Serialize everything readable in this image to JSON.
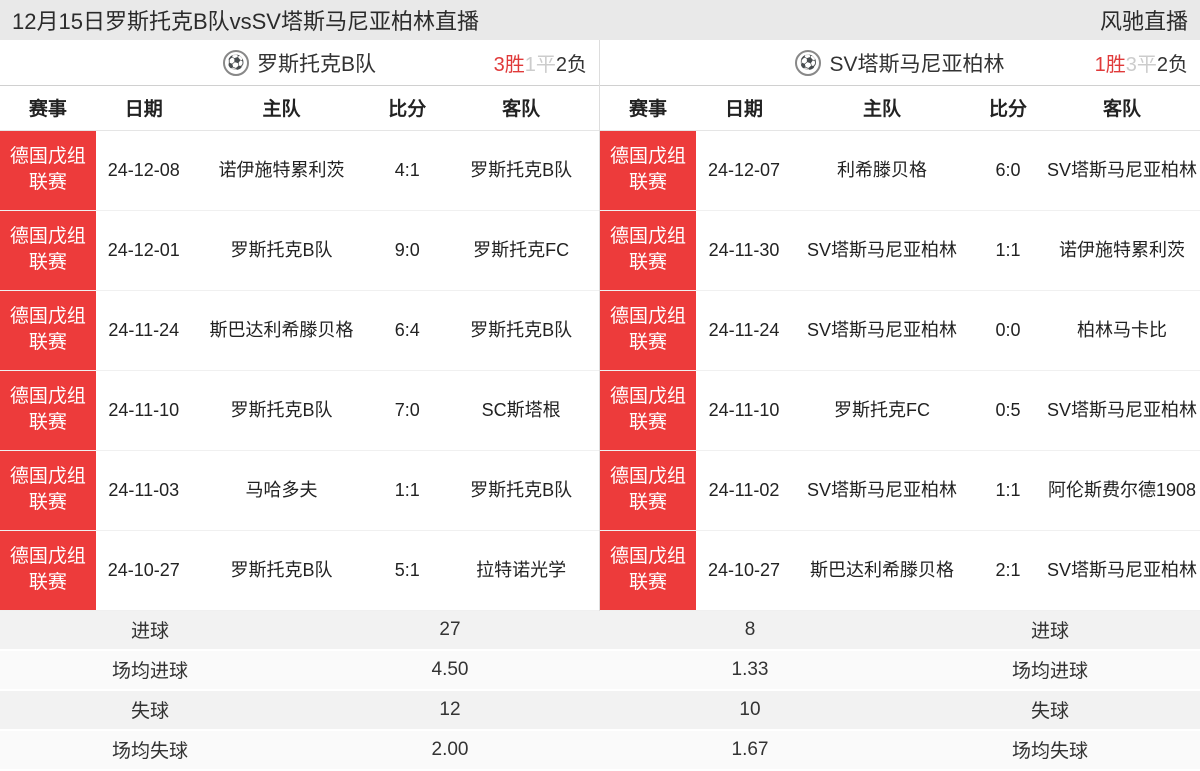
{
  "header": {
    "title": "12月15日罗斯托克B队vsSV塔斯马尼亚柏林直播",
    "site": "风驰直播"
  },
  "columns": {
    "league": "赛事",
    "date": "日期",
    "home": "主队",
    "score": "比分",
    "away": "客队"
  },
  "left": {
    "team_icon_bg": "#e8e8f5",
    "team_name": "罗斯托克B队",
    "summary": {
      "win_n": "3",
      "win_t": "胜",
      "draw_n": "1",
      "draw_t": "平",
      "loss_n": "2",
      "loss_t": "负"
    },
    "rows": [
      {
        "league": "德国戊组联赛",
        "date": "24-12-08",
        "home": "诺伊施特累利茨",
        "score": "4:1",
        "away": "罗斯托克B队"
      },
      {
        "league": "德国戊组联赛",
        "date": "24-12-01",
        "home": "罗斯托克B队",
        "score": "9:0",
        "away": "罗斯托克FC"
      },
      {
        "league": "德国戊组联赛",
        "date": "24-11-24",
        "home": "斯巴达利希滕贝格",
        "score": "6:4",
        "away": "罗斯托克B队"
      },
      {
        "league": "德国戊组联赛",
        "date": "24-11-10",
        "home": "罗斯托克B队",
        "score": "7:0",
        "away": "SC斯塔根"
      },
      {
        "league": "德国戊组联赛",
        "date": "24-11-03",
        "home": "马哈多夫",
        "score": "1:1",
        "away": "罗斯托克B队"
      },
      {
        "league": "德国戊组联赛",
        "date": "24-10-27",
        "home": "罗斯托克B队",
        "score": "5:1",
        "away": "拉特诺光学"
      }
    ],
    "stats": {
      "goals_label": "进球",
      "goals_value": "27",
      "avg_goals_label": "场均进球",
      "avg_goals_value": "4.50",
      "conceded_label": "失球",
      "conceded_value": "12",
      "avg_conceded_label": "场均失球",
      "avg_conceded_value": "2.00"
    }
  },
  "right": {
    "team_icon_bg": "#f0e8f5",
    "team_name": "SV塔斯马尼亚柏林",
    "summary": {
      "win_n": "1",
      "win_t": "胜",
      "draw_n": "3",
      "draw_t": "平",
      "loss_n": "2",
      "loss_t": "负"
    },
    "rows": [
      {
        "league": "德国戊组联赛",
        "date": "24-12-07",
        "home": "利希滕贝格",
        "score": "6:0",
        "away": "SV塔斯马尼亚柏林"
      },
      {
        "league": "德国戊组联赛",
        "date": "24-11-30",
        "home": "SV塔斯马尼亚柏林",
        "score": "1:1",
        "away": "诺伊施特累利茨"
      },
      {
        "league": "德国戊组联赛",
        "date": "24-11-24",
        "home": "SV塔斯马尼亚柏林",
        "score": "0:0",
        "away": "柏林马卡比"
      },
      {
        "league": "德国戊组联赛",
        "date": "24-11-10",
        "home": "罗斯托克FC",
        "score": "0:5",
        "away": "SV塔斯马尼亚柏林"
      },
      {
        "league": "德国戊组联赛",
        "date": "24-11-02",
        "home": "SV塔斯马尼亚柏林",
        "score": "1:1",
        "away": "阿伦斯费尔德1908"
      },
      {
        "league": "德国戊组联赛",
        "date": "24-10-27",
        "home": "斯巴达利希滕贝格",
        "score": "2:1",
        "away": "SV塔斯马尼亚柏林"
      }
    ],
    "stats": {
      "goals_label": "进球",
      "goals_value": "8",
      "avg_goals_label": "场均进球",
      "avg_goals_value": "1.33",
      "conceded_label": "失球",
      "conceded_value": "10",
      "avg_conceded_label": "场均失球",
      "avg_conceded_value": "1.67"
    }
  },
  "colors": {
    "league_bg": "#ed3b3b",
    "header_bg": "#e9e9e9",
    "win": "#e03a3a",
    "draw": "#cccccc",
    "loss": "#333333"
  }
}
